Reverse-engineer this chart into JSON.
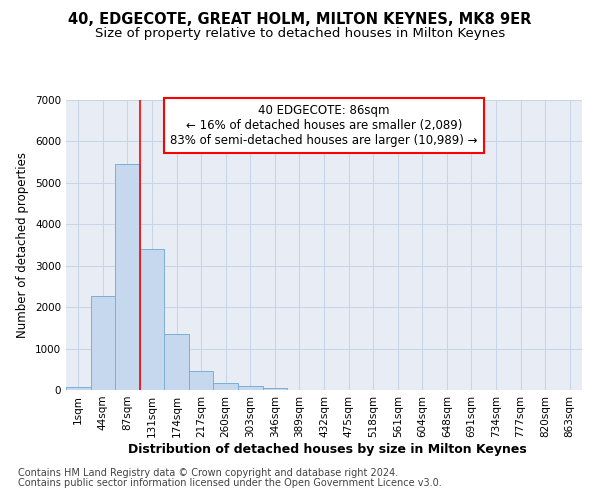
{
  "title": "40, EDGECOTE, GREAT HOLM, MILTON KEYNES, MK8 9ER",
  "subtitle": "Size of property relative to detached houses in Milton Keynes",
  "xlabel": "Distribution of detached houses by size in Milton Keynes",
  "ylabel": "Number of detached properties",
  "bar_color": "#c5d8ee",
  "bar_edge_color": "#7aafd4",
  "categories": [
    "1sqm",
    "44sqm",
    "87sqm",
    "131sqm",
    "174sqm",
    "217sqm",
    "260sqm",
    "303sqm",
    "346sqm",
    "389sqm",
    "432sqm",
    "475sqm",
    "518sqm",
    "561sqm",
    "604sqm",
    "648sqm",
    "691sqm",
    "734sqm",
    "777sqm",
    "820sqm",
    "863sqm"
  ],
  "values": [
    75,
    2280,
    5450,
    3400,
    1350,
    450,
    170,
    100,
    50,
    10,
    5,
    0,
    0,
    0,
    0,
    0,
    0,
    0,
    0,
    0,
    0
  ],
  "annotation_box_text": "40 EDGECOTE: 86sqm\n← 16% of detached houses are smaller (2,089)\n83% of semi-detached houses are larger (10,989) →",
  "vline_x_index": 2,
  "ylim": [
    0,
    7000
  ],
  "yticks": [
    0,
    1000,
    2000,
    3000,
    4000,
    5000,
    6000,
    7000
  ],
  "grid_color": "#c8d4e8",
  "bg_color": "#e8edf5",
  "footer1": "Contains HM Land Registry data © Crown copyright and database right 2024.",
  "footer2": "Contains public sector information licensed under the Open Government Licence v3.0.",
  "title_fontsize": 10.5,
  "subtitle_fontsize": 9.5,
  "xlabel_fontsize": 9,
  "ylabel_fontsize": 8.5,
  "tick_fontsize": 7.5,
  "annotation_fontsize": 8.5,
  "footer_fontsize": 7
}
